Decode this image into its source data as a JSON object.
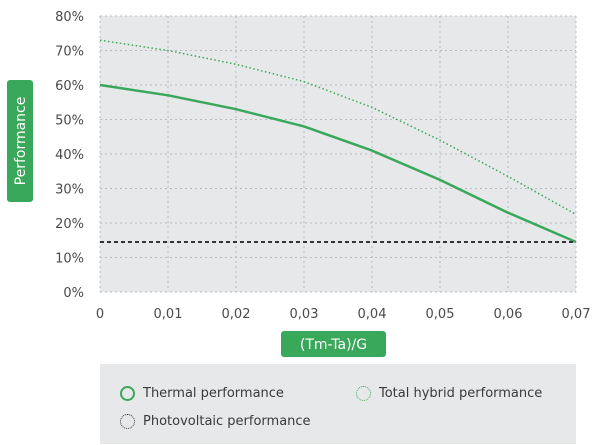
{
  "chart_data": {
    "type": "line",
    "xlabel": "(Tm-Ta)/G",
    "ylabel": "Performance",
    "x": [
      0,
      0.01,
      0.02,
      0.03,
      0.04,
      0.05,
      0.06,
      0.07
    ],
    "xlim": [
      0,
      0.07
    ],
    "ylim": [
      0,
      80
    ],
    "xtick_labels": [
      "0",
      "0,01",
      "0,02",
      "0,03",
      "0,04",
      "0,05",
      "0,06",
      "0,07"
    ],
    "ytick_labels": [
      "0%",
      "10%",
      "20%",
      "30%",
      "40%",
      "50%",
      "60%",
      "70%",
      "80%"
    ],
    "grid": true,
    "legend_position": "bottom",
    "series": [
      {
        "name": "Thermal performance",
        "style": "solid",
        "color": "#3aa85a",
        "values": [
          60,
          57,
          53,
          48,
          41,
          32.5,
          23,
          14.5
        ]
      },
      {
        "name": "Total hybrid performance",
        "style": "dotted",
        "color": "#3aa85a",
        "values": [
          73,
          70,
          66,
          61,
          53.5,
          44,
          33.5,
          22.5
        ]
      },
      {
        "name": "Photovoltaic performance",
        "style": "dashed",
        "color": "#333333",
        "values": [
          14.5,
          14.5,
          14.5,
          14.5,
          14.5,
          14.5,
          14.5,
          14.5
        ]
      }
    ]
  },
  "colors": {
    "plot_background": "#e6e8ea",
    "grid": "#b8bcc0",
    "accent": "#3aa85a",
    "tick_text": "#4a4a4a"
  }
}
